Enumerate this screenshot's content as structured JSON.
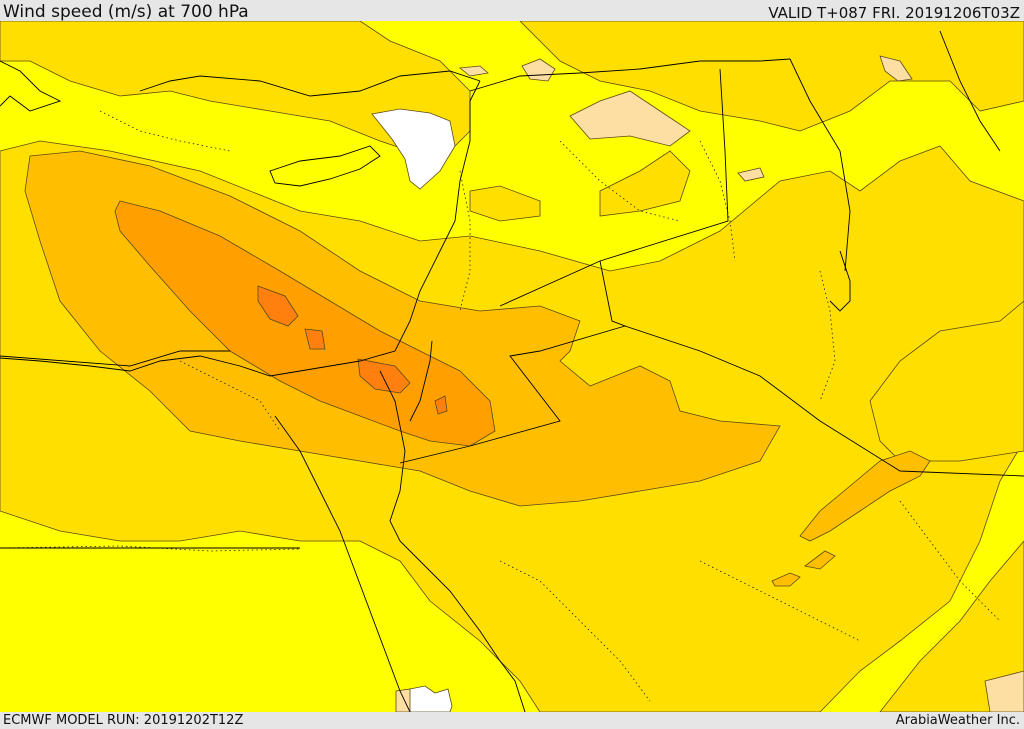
{
  "header": {
    "title": "Wind speed (m/s) at 700 hPa",
    "valid_time": "VALID T+087 FRI. 20191206T03Z"
  },
  "footer": {
    "model_run": "ECMWF MODEL RUN: 20191202T12Z",
    "credit": "ArabiaWeather Inc."
  },
  "colors": {
    "calm": "#ffffff",
    "light_tan": "#fedfa3",
    "base": "#ffff00",
    "band_1": "#ffdf00",
    "band_2": "#ffbf00",
    "band_3": "#ff9f00",
    "band_4": "#ff7f0f",
    "contour": "#5a4a1a",
    "border": "#000000"
  }
}
